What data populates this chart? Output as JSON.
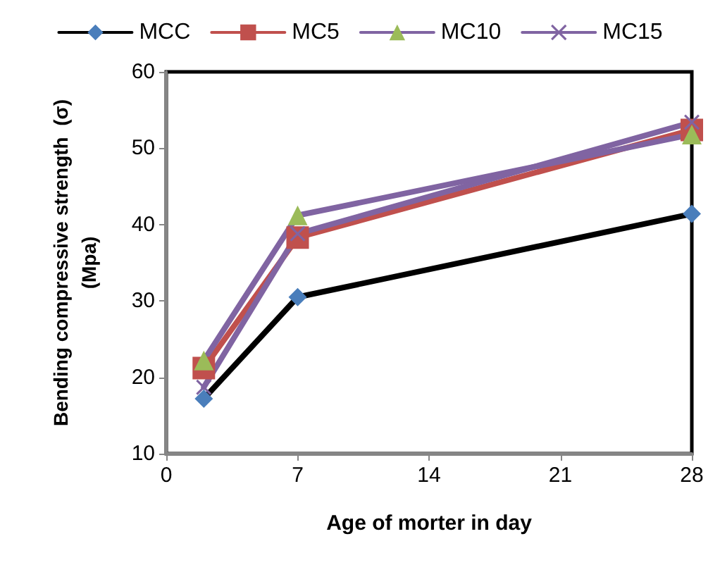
{
  "chart_data": {
    "type": "line",
    "xlabel": "Age of morter in day",
    "ylabel": "Bending compressive strength  (σ)\n(Mpa)",
    "x": [
      2,
      7,
      28
    ],
    "xlim": [
      0,
      28
    ],
    "xticks": [
      0,
      7,
      14,
      21,
      28
    ],
    "ylim": [
      10,
      60
    ],
    "yticks": [
      10,
      20,
      30,
      40,
      50,
      60
    ],
    "grid": false,
    "legend": "top",
    "line_style": "solid",
    "series": [
      {
        "name": "MCC",
        "color": "#000000",
        "colors": [
          "#4a7ebb",
          "#4a7ebb",
          "#4a7ebb"
        ],
        "marker": "diamond",
        "values": [
          17.2,
          30.5,
          41.4
        ]
      },
      {
        "name": "MC5",
        "color": "#c0504d",
        "colors": [
          "#c0504d",
          "#c0504d",
          "#c0504d"
        ],
        "marker": "square",
        "values": [
          21.2,
          38.3,
          52.4
        ]
      },
      {
        "name": "MC10",
        "color": "#8064a2",
        "colors": [
          "#9bbb59",
          "#9bbb59",
          "#9bbb59"
        ],
        "marker": "triangle",
        "values": [
          22.2,
          41.2,
          51.8
        ]
      },
      {
        "name": "MC15",
        "color": "#8064a2",
        "colors": [
          "#8064a2",
          "#8064a2",
          "#8064a2"
        ],
        "marker": "cross",
        "values": [
          18.7,
          38.8,
          53.4
        ]
      }
    ]
  }
}
